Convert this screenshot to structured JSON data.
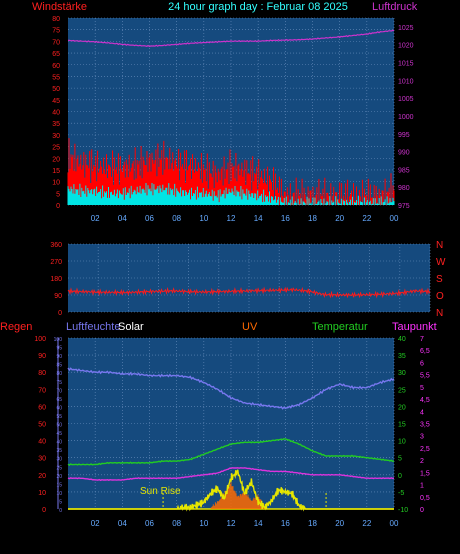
{
  "header": {
    "left_label": "Windstärke",
    "title": "24 hour graph day : Februar 08 2025",
    "right_label": "Luftdruck"
  },
  "time_ticks": [
    "02",
    "04",
    "06",
    "08",
    "10",
    "12",
    "14",
    "16",
    "18",
    "20",
    "22",
    "00"
  ],
  "colors": {
    "panel_bg": "#154a7e",
    "grid": "#6a8fbf",
    "wind_gust": "#ff0000",
    "wind_avg": "#00e5e5",
    "pressure": "#cc33cc",
    "direction": "#ff1a1a",
    "humidity": "#7777ee",
    "temperature": "#22cc22",
    "dewpoint": "#dd33dd",
    "solar": "#e6e600",
    "uv": "#ff6a00"
  },
  "chart_data": [
    {
      "type": "line",
      "title": "24 hour graph day : Februar 08 2025",
      "xlabel": "",
      "x_ticks": [
        "02",
        "04",
        "06",
        "08",
        "10",
        "12",
        "14",
        "16",
        "18",
        "20",
        "22",
        "00"
      ],
      "left_axis": {
        "label": "Windstärke",
        "ylim": [
          0,
          80
        ],
        "ticks": [
          "0",
          "5",
          "10",
          "15",
          "20",
          "25",
          "30",
          "35",
          "40",
          "45",
          "50",
          "55",
          "60",
          "65",
          "70",
          "75",
          "80"
        ]
      },
      "right_axis": {
        "label": "Luftdruck",
        "ylim": [
          975,
          1027.5
        ],
        "ticks": [
          "975",
          "980",
          "985",
          "990",
          "995",
          "1000",
          "1005",
          "1010",
          "1015",
          "1020",
          "1025"
        ]
      },
      "series": [
        {
          "role": "wind_gust",
          "axis": "left",
          "x": [
            0,
            1,
            2,
            3,
            4,
            5,
            6,
            7,
            8,
            9,
            10,
            11,
            12,
            13,
            14,
            15,
            16,
            17,
            18,
            19,
            20,
            21,
            22,
            23,
            24
          ],
          "values": [
            18,
            15,
            14,
            13,
            13,
            14,
            16,
            17,
            15,
            14,
            12,
            10,
            13,
            12,
            10,
            7,
            1,
            1,
            1,
            1,
            1,
            1,
            1,
            1,
            3
          ]
        },
        {
          "role": "wind_avg",
          "axis": "left",
          "x": [
            0,
            1,
            2,
            3,
            4,
            5,
            6,
            7,
            8,
            9,
            10,
            11,
            12,
            13,
            14,
            15,
            16,
            17,
            18,
            19,
            20,
            21,
            22,
            23,
            24
          ],
          "values": [
            6,
            5,
            5,
            4,
            4,
            5,
            6,
            6,
            5,
            4,
            4,
            3,
            5,
            4,
            3,
            2,
            0,
            0,
            0,
            0,
            0,
            0,
            0,
            0,
            1
          ]
        },
        {
          "role": "pressure",
          "axis": "right",
          "x": [
            0,
            1,
            2,
            3,
            4,
            5,
            6,
            7,
            8,
            9,
            10,
            11,
            12,
            13,
            14,
            15,
            16,
            17,
            18,
            19,
            20,
            21,
            22,
            23,
            24
          ],
          "values": [
            1021.2,
            1021,
            1020.8,
            1020.5,
            1020.1,
            1019.8,
            1019.6,
            1019.8,
            1020.1,
            1020.4,
            1020.6,
            1020.8,
            1021,
            1021,
            1021,
            1021.2,
            1021.3,
            1021.4,
            1021.6,
            1021.9,
            1022.2,
            1022.6,
            1023,
            1023.6,
            1024
          ]
        }
      ]
    },
    {
      "type": "line",
      "title": "",
      "x_ticks": [
        "02",
        "04",
        "06",
        "08",
        "10",
        "12",
        "14",
        "16",
        "18",
        "20",
        "22",
        "00"
      ],
      "left_axis": {
        "ylim": [
          0,
          360
        ],
        "ticks": [
          "0",
          "90",
          "180",
          "270",
          "360"
        ]
      },
      "right_axis": {
        "labels": [
          "N",
          "W",
          "S",
          "O",
          "N"
        ]
      },
      "series": [
        {
          "role": "direction",
          "axis": "left",
          "x": [
            0,
            1,
            2,
            3,
            4,
            5,
            6,
            7,
            8,
            9,
            10,
            11,
            12,
            13,
            14,
            15,
            16,
            17,
            18,
            19,
            20,
            21,
            22,
            23,
            24
          ],
          "values": [
            110,
            108,
            105,
            104,
            103,
            107,
            110,
            112,
            108,
            106,
            108,
            110,
            112,
            114,
            116,
            118,
            110,
            92,
            90,
            90,
            92,
            95,
            100,
            112,
            108
          ]
        }
      ]
    },
    {
      "type": "line",
      "title": "",
      "x_ticks": [
        "02",
        "04",
        "06",
        "08",
        "10",
        "12",
        "14",
        "16",
        "18",
        "20",
        "22",
        "00"
      ],
      "legend": [
        "Regen",
        "Luftfeuchte",
        "Solar",
        "UV",
        "Temperatur",
        "Taupunkt"
      ],
      "axes": {
        "rain": {
          "label": "Regen",
          "ylim": [
            0,
            100
          ],
          "ticks": [
            "0",
            "10",
            "20",
            "30",
            "40",
            "50",
            "60",
            "70",
            "80",
            "90",
            "100"
          ]
        },
        "humidity": {
          "label": "Luftfeuchte",
          "ticks": [
            "0",
            "5",
            "10",
            "15",
            "20",
            "25",
            "30",
            "35",
            "40",
            "45",
            "50",
            "55",
            "60",
            "65",
            "70",
            "75",
            "80",
            "85",
            "90",
            "95",
            "100"
          ]
        },
        "temperature": {
          "label": "Temperatur",
          "ylim": [
            -10,
            40
          ],
          "ticks": [
            "-10",
            "-5",
            "0",
            "5",
            "10",
            "15",
            "20",
            "25",
            "30",
            "35",
            "40"
          ]
        },
        "dewpoint": {
          "label": "Taupunkt",
          "ylim": [
            0,
            7
          ],
          "ticks": [
            "0",
            "0,5",
            "1",
            "1,5",
            "2",
            "2,5",
            "3",
            "3,5",
            "4",
            "4,5",
            "5",
            "5,5",
            "6",
            "6,5",
            "7"
          ]
        }
      },
      "annotations": [
        "Sun Rise"
      ],
      "series": [
        {
          "role": "humidity",
          "scale": "rain",
          "x": [
            0,
            1,
            2,
            3,
            4,
            5,
            6,
            7,
            8,
            9,
            10,
            11,
            12,
            13,
            14,
            15,
            16,
            17,
            18,
            19,
            20,
            21,
            22,
            23,
            24
          ],
          "values": [
            82,
            81,
            80,
            80,
            79,
            79,
            78,
            78,
            78,
            77,
            74,
            70,
            65,
            62,
            61,
            60,
            59,
            61,
            65,
            70,
            73,
            71,
            71,
            74,
            76
          ]
        },
        {
          "role": "temperature",
          "scale": "rain",
          "x": [
            0,
            1,
            2,
            3,
            4,
            5,
            6,
            7,
            8,
            9,
            10,
            11,
            12,
            13,
            14,
            15,
            16,
            17,
            18,
            19,
            20,
            21,
            22,
            23,
            24
          ],
          "values": [
            26,
            26,
            26,
            27,
            27,
            27,
            27,
            28,
            28,
            29,
            32,
            35,
            38,
            39,
            39,
            40,
            41,
            38,
            34,
            31,
            31,
            31,
            30,
            29,
            28
          ]
        },
        {
          "role": "dewpoint",
          "scale": "rain",
          "x": [
            0,
            1,
            2,
            3,
            4,
            5,
            6,
            7,
            8,
            9,
            10,
            11,
            12,
            13,
            14,
            15,
            16,
            17,
            18,
            19,
            20,
            21,
            22,
            23,
            24
          ],
          "values": [
            18,
            18,
            17,
            17,
            17,
            18,
            18,
            18,
            18,
            19,
            20,
            21,
            24,
            24,
            23,
            22,
            22,
            21,
            20,
            20,
            20,
            19,
            18,
            18,
            18
          ]
        },
        {
          "role": "solar",
          "scale": "rain",
          "x": [
            0,
            7,
            8,
            9,
            10,
            10.5,
            11,
            11.5,
            12,
            12.5,
            13,
            13.5,
            14,
            14.5,
            15,
            15.5,
            16,
            16.5,
            17,
            17.5,
            18,
            24
          ],
          "values": [
            0,
            0,
            0,
            1,
            4,
            9,
            12,
            6,
            18,
            22,
            9,
            16,
            4,
            1,
            5,
            11,
            10,
            9,
            2,
            0,
            0,
            0
          ]
        },
        {
          "role": "uv",
          "scale": "rain",
          "x": [
            0,
            10.5,
            11,
            11.5,
            12,
            12.5,
            13,
            13.5,
            14,
            14.5,
            24
          ],
          "values": [
            0,
            0,
            3,
            8,
            14,
            6,
            9,
            4,
            7,
            0,
            0
          ]
        }
      ]
    }
  ]
}
